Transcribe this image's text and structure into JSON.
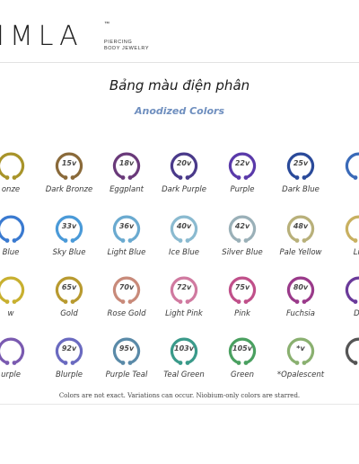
{
  "brand": {
    "logo_text": "IMLA",
    "trademark": "™",
    "tagline_line1": "PIERCING",
    "tagline_line2": "BODY JEWELRY"
  },
  "title": "Bảng màu điện phân",
  "subtitle": "Anodized Colors",
  "footnote": "Colors are not exact. Variations can occur. Niobium-only colors are starred.",
  "rows": [
    [
      {
        "volt": "",
        "name": "onze",
        "color": "#a8942a"
      },
      {
        "volt": "15v",
        "name": "Dark Bronze",
        "color": "#8a6a3a"
      },
      {
        "volt": "18v",
        "name": "Eggplant",
        "color": "#6a3a7a"
      },
      {
        "volt": "20v",
        "name": "Dark Purple",
        "color": "#4a3a8a"
      },
      {
        "volt": "22v",
        "name": "Purple",
        "color": "#5a3aaa"
      },
      {
        "volt": "25v",
        "name": "Dark Blue",
        "color": "#2a4a9a"
      },
      {
        "volt": "",
        "name": "",
        "color": "#3a6ab8"
      }
    ],
    [
      {
        "volt": "",
        "name": "Blue",
        "color": "#3a7ad0"
      },
      {
        "volt": "33v",
        "name": "Sky Blue",
        "color": "#4a9ad8"
      },
      {
        "volt": "36v",
        "name": "Light Blue",
        "color": "#6aaad0"
      },
      {
        "volt": "40v",
        "name": "Ice Blue",
        "color": "#8abad0"
      },
      {
        "volt": "42v",
        "name": "Silver Blue",
        "color": "#9ab0b8"
      },
      {
        "volt": "48v",
        "name": "Pale Yellow",
        "color": "#b8b07a"
      },
      {
        "volt": "",
        "name": "Lig",
        "color": "#c8b060"
      }
    ],
    [
      {
        "volt": "",
        "name": "w",
        "color": "#c8b030"
      },
      {
        "volt": "65v",
        "name": "Gold",
        "color": "#b89a30"
      },
      {
        "volt": "70v",
        "name": "Rose Gold",
        "color": "#c88a7a"
      },
      {
        "volt": "72v",
        "name": "Light Pink",
        "color": "#d07aa0"
      },
      {
        "volt": "75v",
        "name": "Pink",
        "color": "#c0508a"
      },
      {
        "volt": "80v",
        "name": "Fuchsia",
        "color": "#9a3a8a"
      },
      {
        "volt": "",
        "name": "Da",
        "color": "#6a3a9a"
      }
    ],
    [
      {
        "volt": "",
        "name": "urple",
        "color": "#7a5ab0"
      },
      {
        "volt": "92v",
        "name": "Blurple",
        "color": "#6a6ac0"
      },
      {
        "volt": "95v",
        "name": "Purple Teal",
        "color": "#5a8aa8"
      },
      {
        "volt": "103v",
        "name": "Teal Green",
        "color": "#3a9a8a"
      },
      {
        "volt": "105v",
        "name": "Green",
        "color": "#4aa060"
      },
      {
        "volt": "*v",
        "name": "*Opalescent",
        "color": "#8ab070"
      },
      {
        "volt": "",
        "name": "",
        "color": "#555555"
      }
    ]
  ]
}
